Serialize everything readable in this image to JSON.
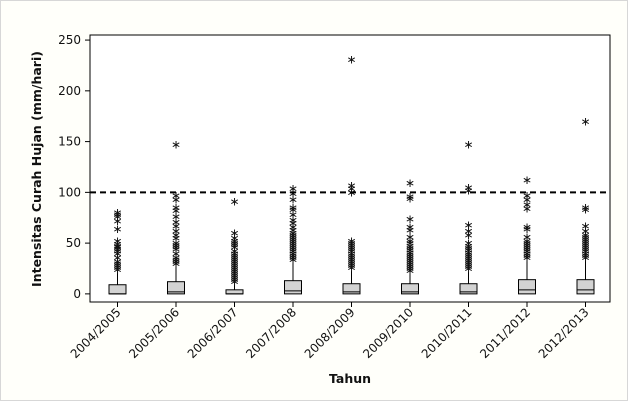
{
  "chart_data": {
    "type": "boxplot",
    "xlabel": "Tahun",
    "ylabel": "Intensitas Curah Hujan (mm/hari)",
    "categories": [
      "2004/2005",
      "2005/2006",
      "2006/2007",
      "2007/2008",
      "2008/2009",
      "2009/2010",
      "2010/2011",
      "2011/2012",
      "2012/2013"
    ],
    "ylim": [
      -8,
      255
    ],
    "yticks": [
      0,
      50,
      100,
      150,
      200,
      250
    ],
    "reference_line": {
      "y": 100,
      "style": "dashed"
    },
    "box_color": "#d3d3d3",
    "series": [
      {
        "q1": 0,
        "median": 0,
        "q3": 9,
        "whisker_low": 0,
        "whisker_high": 22,
        "outliers": [
          80,
          78,
          76,
          72,
          64,
          52,
          49,
          47,
          46,
          44,
          42,
          40,
          36,
          32,
          30,
          28,
          26,
          24
        ]
      },
      {
        "q1": 0,
        "median": 2,
        "q3": 12,
        "whisker_low": 0,
        "whisker_high": 28,
        "outliers": [
          147,
          97,
          93,
          85,
          82,
          76,
          71,
          67,
          62,
          58,
          55,
          50,
          48,
          46,
          44,
          40,
          36,
          34,
          32,
          30
        ]
      },
      {
        "q1": 0,
        "median": 0,
        "q3": 4,
        "whisker_low": 0,
        "whisker_high": 10,
        "outliers": [
          91,
          60,
          55,
          52,
          50,
          48,
          46,
          42,
          40,
          38,
          36,
          34,
          32,
          30,
          28,
          26,
          24,
          22,
          20,
          18,
          16,
          14,
          12
        ]
      },
      {
        "q1": 0,
        "median": 3,
        "q3": 13,
        "whisker_low": 0,
        "whisker_high": 32,
        "outliers": [
          104,
          99,
          93,
          85,
          83,
          78,
          73,
          70,
          66,
          63,
          60,
          58,
          56,
          54,
          52,
          50,
          48,
          46,
          44,
          42,
          40,
          38,
          36,
          34
        ]
      },
      {
        "q1": 0,
        "median": 2,
        "q3": 10,
        "whisker_low": 0,
        "whisker_high": 23,
        "outliers": [
          231,
          107,
          104,
          100,
          52,
          50,
          48,
          46,
          44,
          42,
          40,
          38,
          36,
          34,
          32,
          30,
          28,
          26
        ]
      },
      {
        "q1": 0,
        "median": 2,
        "q3": 10,
        "whisker_low": 0,
        "whisker_high": 22,
        "outliers": [
          109,
          96,
          94,
          74,
          66,
          63,
          56,
          52,
          50,
          47,
          45,
          43,
          41,
          39,
          37,
          35,
          33,
          31,
          29,
          27,
          25,
          23
        ]
      },
      {
        "q1": 0,
        "median": 2,
        "q3": 10,
        "whisker_low": 0,
        "whisker_high": 22,
        "outliers": [
          147,
          105,
          102,
          68,
          62,
          58,
          50,
          47,
          45,
          43,
          41,
          39,
          37,
          35,
          33,
          31,
          29,
          27,
          25
        ]
      },
      {
        "q1": 0,
        "median": 4,
        "q3": 14,
        "whisker_low": 0,
        "whisker_high": 35,
        "outliers": [
          112,
          97,
          93,
          88,
          84,
          66,
          64,
          56,
          52,
          50,
          48,
          46,
          44,
          42,
          40,
          38,
          36
        ]
      },
      {
        "q1": 0,
        "median": 4,
        "q3": 14,
        "whisker_low": 0,
        "whisker_high": 35,
        "outliers": [
          170,
          85,
          83,
          67,
          62,
          58,
          56,
          54,
          52,
          50,
          48,
          46,
          44,
          42,
          40,
          38,
          36
        ]
      }
    ]
  }
}
